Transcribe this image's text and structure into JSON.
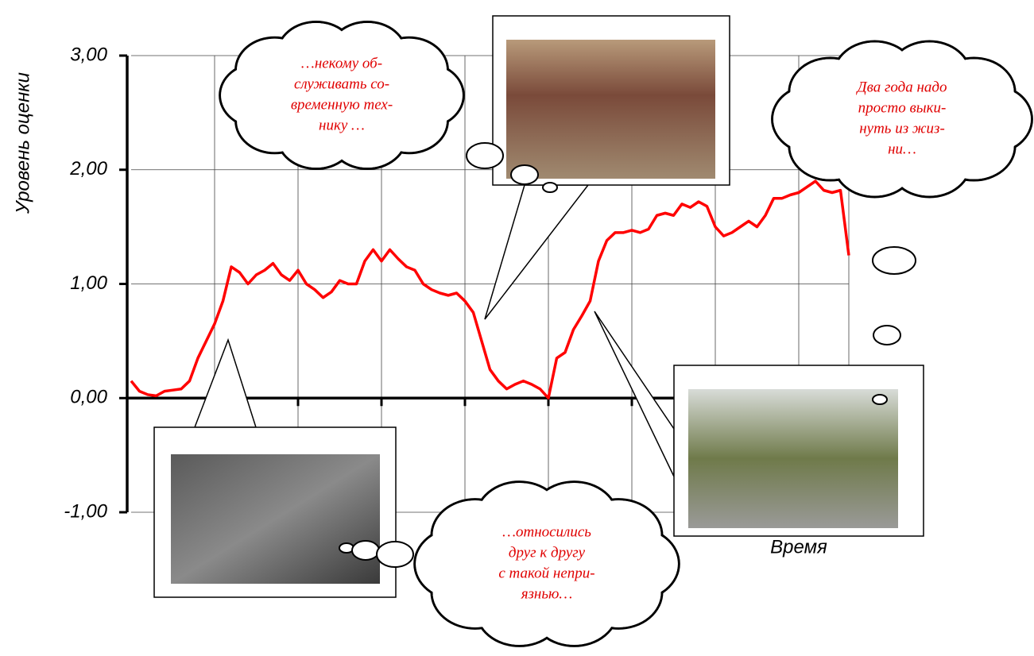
{
  "chart_data": {
    "type": "line",
    "y_label": "Уровень оценки",
    "x_label": "Время",
    "ylim": [
      -1,
      3
    ],
    "yticks": [
      {
        "value": 3,
        "label": "3,00"
      },
      {
        "value": 2,
        "label": "2,00"
      },
      {
        "value": 1,
        "label": "1,00"
      },
      {
        "value": 0,
        "label": "0,00"
      },
      {
        "value": -1,
        "label": "-1,00"
      }
    ],
    "xlim": [
      0,
      86
    ],
    "xticks": [
      0,
      10,
      20,
      30,
      40,
      50,
      60,
      70,
      80
    ],
    "grid": true,
    "x": [
      0,
      1,
      2,
      3,
      4,
      5,
      6,
      7,
      8,
      9,
      10,
      11,
      12,
      13,
      14,
      15,
      16,
      17,
      18,
      19,
      20,
      21,
      22,
      23,
      24,
      25,
      26,
      27,
      28,
      29,
      30,
      31,
      32,
      33,
      34,
      35,
      36,
      37,
      38,
      39,
      40,
      41,
      42,
      43,
      44,
      45,
      46,
      47,
      48,
      49,
      50,
      51,
      52,
      53,
      54,
      55,
      56,
      57,
      58,
      59,
      60,
      61,
      62,
      63,
      64,
      65,
      66,
      67,
      68,
      69,
      70,
      71,
      72,
      73,
      74,
      75,
      76,
      77,
      78,
      79,
      80,
      81,
      82,
      83,
      84,
      85,
      86
    ],
    "series": [
      {
        "color": "#ff0000",
        "values": [
          0.15,
          0.06,
          0.03,
          0.02,
          0.06,
          0.07,
          0.08,
          0.15,
          0.35,
          0.5,
          0.65,
          0.85,
          1.15,
          1.1,
          1.0,
          1.08,
          1.12,
          1.18,
          1.08,
          1.03,
          1.12,
          1.0,
          0.95,
          0.88,
          0.93,
          1.03,
          1.0,
          1.0,
          1.2,
          1.3,
          1.2,
          1.3,
          1.22,
          1.15,
          1.12,
          1.0,
          0.95,
          0.92,
          0.9,
          0.92,
          0.85,
          0.75,
          0.5,
          0.25,
          0.15,
          0.08,
          0.12,
          0.15,
          0.12,
          0.08,
          0.0,
          0.35,
          0.4,
          0.6,
          0.72,
          0.85,
          1.2,
          1.38,
          1.45,
          1.45,
          1.47,
          1.45,
          1.48,
          1.6,
          1.62,
          1.6,
          1.7,
          1.67,
          1.72,
          1.68,
          1.5,
          1.42,
          1.45,
          1.5,
          1.55,
          1.5,
          1.6,
          1.75,
          1.75,
          1.78,
          1.8,
          1.85,
          1.9,
          1.82,
          1.8,
          1.82,
          1.25
        ]
      }
    ],
    "annotations": [
      [
        "…некому об-",
        "служивать со-",
        "временную тех-",
        "нику …"
      ],
      [
        "Два года надо",
        "просто выки-",
        "нуть из жиз-",
        "ни…"
      ],
      [
        "…относились",
        "друг к другу",
        "с такой непри-",
        "язнью…"
      ]
    ]
  }
}
